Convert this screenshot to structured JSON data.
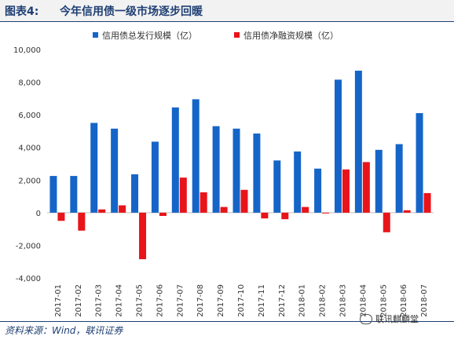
{
  "header": {
    "figure_label": "图表4:",
    "title": "今年信用债一级市场逐步回暖"
  },
  "chart_data": {
    "type": "bar",
    "categories": [
      "2017-01",
      "2017-02",
      "2017-03",
      "2017-04",
      "2017-05",
      "2017-06",
      "2017-07",
      "2017-08",
      "2017-09",
      "2017-10",
      "2017-11",
      "2017-12",
      "2018-01",
      "2018-02",
      "2018-03",
      "2018-04",
      "2018-05",
      "2018-06",
      "2018-07"
    ],
    "series": [
      {
        "name": "信用债总发行规模（亿）",
        "color": "#1565c8",
        "values": [
          2250,
          2250,
          5500,
          5150,
          2350,
          4350,
          6450,
          6950,
          5300,
          5150,
          4850,
          3200,
          3750,
          2700,
          8150,
          8700,
          3850,
          4200,
          6100
        ]
      },
      {
        "name": "信用债净融资规模（亿）",
        "color": "#e8141a",
        "values": [
          -500,
          -1100,
          200,
          450,
          -2850,
          -200,
          2150,
          1250,
          350,
          1400,
          -350,
          -400,
          350,
          0,
          2650,
          3100,
          -1200,
          150,
          1200
        ]
      }
    ],
    "yticks": [
      "10,000",
      "8,000",
      "6,000",
      "4,000",
      "2,000",
      "0",
      "-2,000",
      "-4,000"
    ],
    "ylim": [
      -4000,
      10000
    ],
    "legend_position": "top",
    "grid": false
  },
  "footer": {
    "source": "资料来源：Wind，联讯证券",
    "watermark": "联讯麒麟堂"
  }
}
